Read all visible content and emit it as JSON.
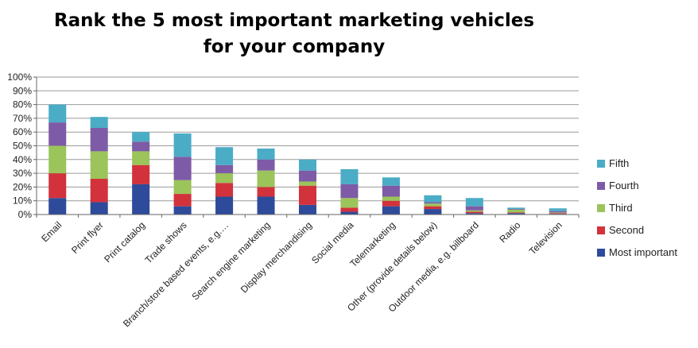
{
  "chart_data": {
    "type": "bar",
    "stacked": true,
    "title": "Rank the 5 most important marketing vehicles for your company",
    "xlabel": "",
    "ylabel": "",
    "ylim": [
      0,
      100
    ],
    "y_ticks": [
      "0%",
      "10%",
      "20%",
      "30%",
      "40%",
      "50%",
      "60%",
      "70%",
      "80%",
      "90%",
      "100%"
    ],
    "grid": true,
    "legend_position": "right",
    "categories": [
      "Email",
      "Print flyer",
      "Print catalog",
      "Trade shows",
      "Branch/store based events, e.g.…",
      "Search engine marketing",
      "Display merchandising",
      "Social media",
      "Telemarketing",
      "Other (provide details below)",
      "Outdoor media, e.g. billboard",
      "Radio",
      "Television"
    ],
    "series": [
      {
        "name": "Most important",
        "color": "#2E4B9B",
        "values": [
          12,
          9,
          22,
          6,
          13,
          13,
          7,
          2,
          6,
          4,
          1,
          1,
          0.5
        ]
      },
      {
        "name": "Second",
        "color": "#D2323C",
        "values": [
          18,
          17,
          14,
          9,
          10,
          7,
          14,
          3,
          4,
          2,
          1,
          0.5,
          0.5
        ]
      },
      {
        "name": "Third",
        "color": "#9BC45A",
        "values": [
          20,
          20,
          10,
          10,
          7,
          12,
          3,
          7,
          3,
          2,
          1,
          2,
          0.5
        ]
      },
      {
        "name": "Fourth",
        "color": "#7E5BA6",
        "values": [
          17,
          17,
          7,
          17,
          6,
          8,
          8,
          10,
          8,
          1,
          3,
          0.5,
          1
        ]
      },
      {
        "name": "Fifth",
        "color": "#4BACC6",
        "values": [
          13,
          8,
          7,
          17,
          13,
          8,
          8,
          11,
          6,
          5,
          6,
          1,
          2
        ]
      }
    ]
  }
}
